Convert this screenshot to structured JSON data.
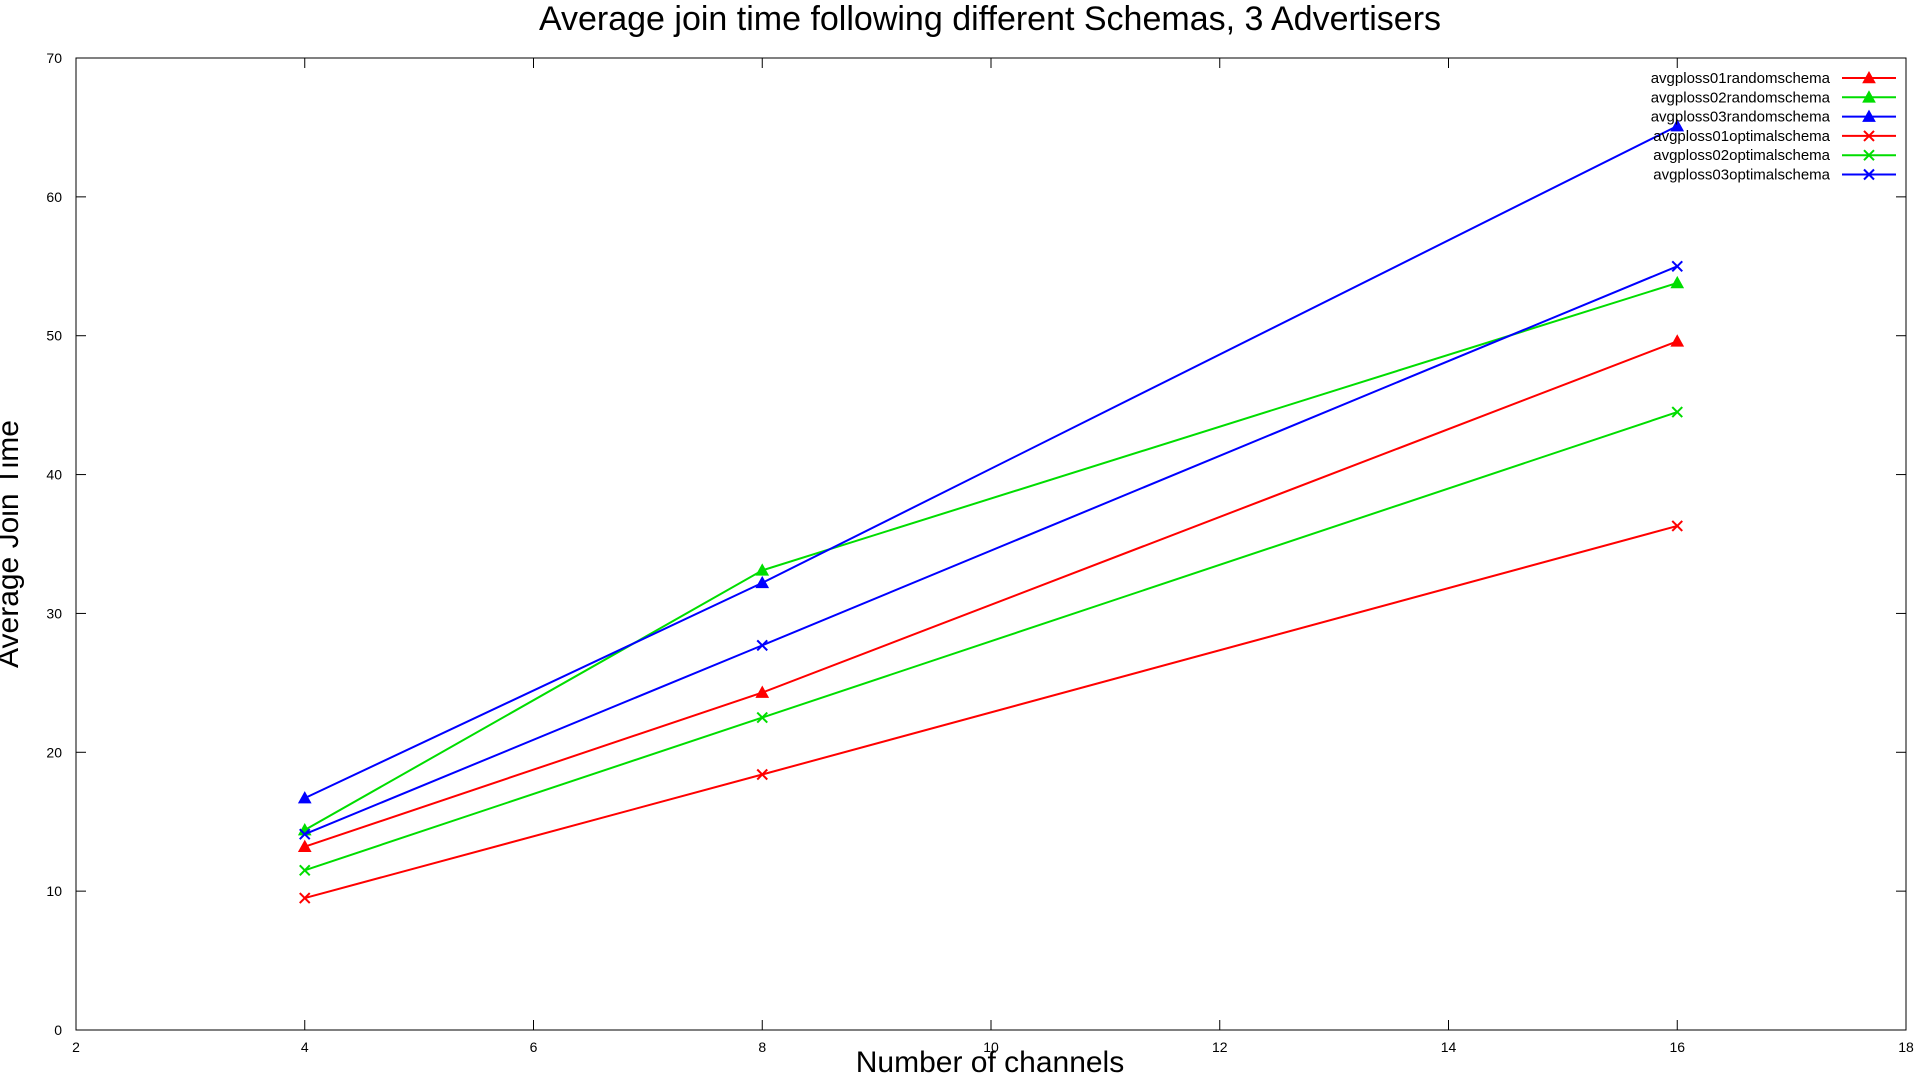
{
  "chart_data": {
    "type": "line",
    "title": "Average join time following different Schemas, 3 Advertisers",
    "xlabel": "Number of channels",
    "ylabel": "Average Join Time",
    "xlim": [
      2,
      18
    ],
    "ylim": [
      0,
      70
    ],
    "x_ticks": [
      "2",
      "4",
      "6",
      "8",
      "10",
      "12",
      "14",
      "16",
      "18"
    ],
    "y_ticks": [
      "0",
      "10",
      "20",
      "30",
      "40",
      "50",
      "60",
      "70"
    ],
    "grid": false,
    "legend_position": "top-right",
    "x": [
      4,
      8,
      16
    ],
    "series": [
      {
        "name": "avgploss01randomschema",
        "values": [
          13.2,
          24.3,
          49.6
        ],
        "color": "#ff0000",
        "marker": "triangle"
      },
      {
        "name": "avgploss02randomschema",
        "values": [
          14.4,
          33.1,
          53.8
        ],
        "color": "#00dd00",
        "marker": "triangle"
      },
      {
        "name": "avgploss03randomschema",
        "values": [
          16.7,
          32.2,
          65.1
        ],
        "color": "#0000ff",
        "marker": "triangle"
      },
      {
        "name": "avgploss01optimalschema",
        "values": [
          9.5,
          18.4,
          36.3
        ],
        "color": "#ff0000",
        "marker": "cross"
      },
      {
        "name": "avgploss02optimalschema",
        "values": [
          11.5,
          22.5,
          44.5
        ],
        "color": "#00dd00",
        "marker": "cross"
      },
      {
        "name": "avgploss03optimalschema",
        "values": [
          14.1,
          27.7,
          55.0
        ],
        "color": "#0000ff",
        "marker": "cross"
      }
    ]
  }
}
